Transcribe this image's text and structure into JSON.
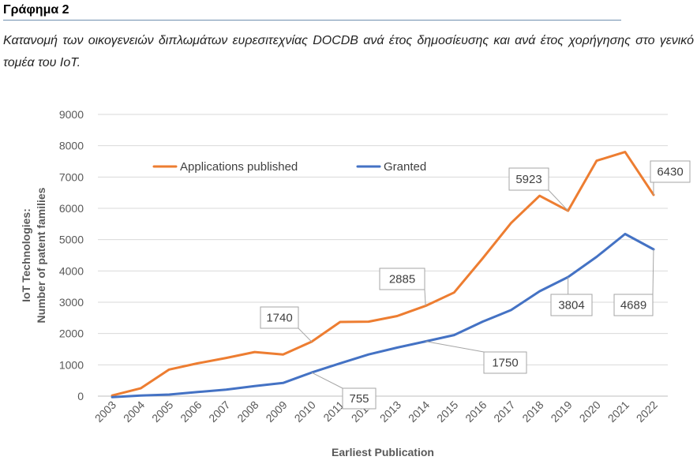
{
  "figure_label": "Γράφημα 2",
  "caption": "Κατανομή των οικογενειών διπλωμάτων ευρεσιτεχνίας DOCDB ανά έτος δημοσίευσης και ανά έτος χορήγησης στο γενικό τομέα του IoT.",
  "chart_data": {
    "type": "line",
    "title": "",
    "xlabel": "Earliest Publication",
    "ylabel": [
      "IoT Technologies:",
      "Number of patent families"
    ],
    "ylim": [
      0,
      9000
    ],
    "yticks": [
      0,
      1000,
      2000,
      3000,
      4000,
      5000,
      6000,
      7000,
      8000,
      9000
    ],
    "grid": true,
    "legend_position": "top-left",
    "categories": [
      "2003",
      "2004",
      "2005",
      "2006",
      "2007",
      "2008",
      "2009",
      "2010",
      "2011",
      "2012",
      "2013",
      "2014",
      "2015",
      "2016",
      "2017",
      "2018",
      "2019",
      "2020",
      "2021",
      "2022"
    ],
    "series": [
      {
        "name": "Applications published",
        "color": "#ed7d31",
        "values": [
          20,
          250,
          850,
          1050,
          1220,
          1410,
          1330,
          1740,
          2370,
          2380,
          2560,
          2885,
          3310,
          4400,
          5530,
          6400,
          5923,
          7520,
          7800,
          6430
        ]
      },
      {
        "name": "Granted",
        "color": "#4472c4",
        "values": [
          -30,
          20,
          50,
          130,
          210,
          320,
          420,
          755,
          1050,
          1330,
          1550,
          1750,
          1950,
          2380,
          2750,
          3350,
          3804,
          4450,
          5180,
          4689
        ]
      }
    ],
    "data_labels": [
      {
        "series": 0,
        "index": 7,
        "text": "1740"
      },
      {
        "series": 0,
        "index": 11,
        "text": "2885"
      },
      {
        "series": 0,
        "index": 16,
        "text": "5923"
      },
      {
        "series": 0,
        "index": 19,
        "text": "6430"
      },
      {
        "series": 1,
        "index": 7,
        "text": "755"
      },
      {
        "series": 1,
        "index": 11,
        "text": "1750"
      },
      {
        "series": 1,
        "index": 16,
        "text": "3804"
      },
      {
        "series": 1,
        "index": 19,
        "text": "4689"
      }
    ]
  }
}
